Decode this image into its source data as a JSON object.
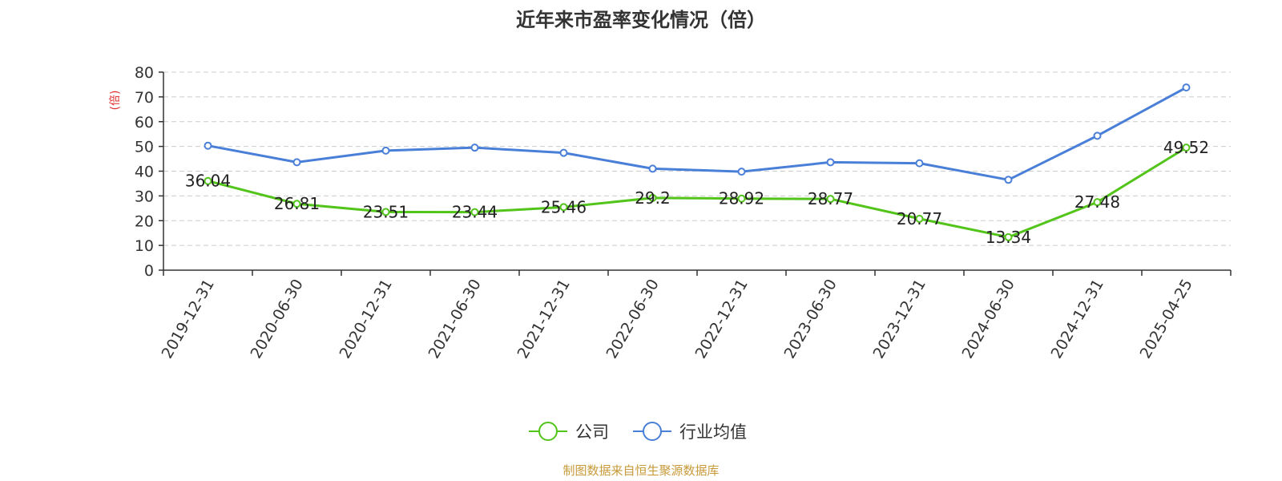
{
  "chart_data": {
    "type": "line",
    "title": "近年来市盈率变化情况（倍）",
    "y_unit": "(倍)",
    "ylim": [
      0,
      80
    ],
    "y_ticks": [
      0,
      10,
      20,
      30,
      40,
      50,
      60,
      70,
      80
    ],
    "grid": true,
    "legend_position": "bottom",
    "categories": [
      "2019-12-31",
      "2020-06-30",
      "2020-12-31",
      "2021-06-30",
      "2021-12-31",
      "2022-06-30",
      "2022-12-31",
      "2023-06-30",
      "2023-12-31",
      "2024-06-30",
      "2024-12-31",
      "2025-04-25"
    ],
    "series": [
      {
        "name": "公司",
        "color": "#52c41a",
        "values": [
          36.04,
          26.81,
          23.51,
          23.44,
          25.46,
          29.2,
          28.92,
          28.77,
          20.77,
          13.34,
          27.48,
          49.52
        ],
        "labels": [
          "36.04",
          "26.81",
          "23.51",
          "23.44",
          "25.46",
          "29.2",
          "28.92",
          "28.77",
          "20.77",
          "13.34",
          "27.48",
          "49.52"
        ]
      },
      {
        "name": "行业均值",
        "color": "#4a7fd8",
        "values": [
          50.3,
          43.6,
          48.3,
          49.5,
          47.4,
          41.0,
          39.8,
          43.6,
          43.2,
          36.5,
          54.3,
          73.8
        ]
      }
    ]
  },
  "colors": {
    "unit_label": "#e03030",
    "source": "#c79a3a"
  },
  "footer": {
    "source": "制图数据来自恒生聚源数据库"
  }
}
